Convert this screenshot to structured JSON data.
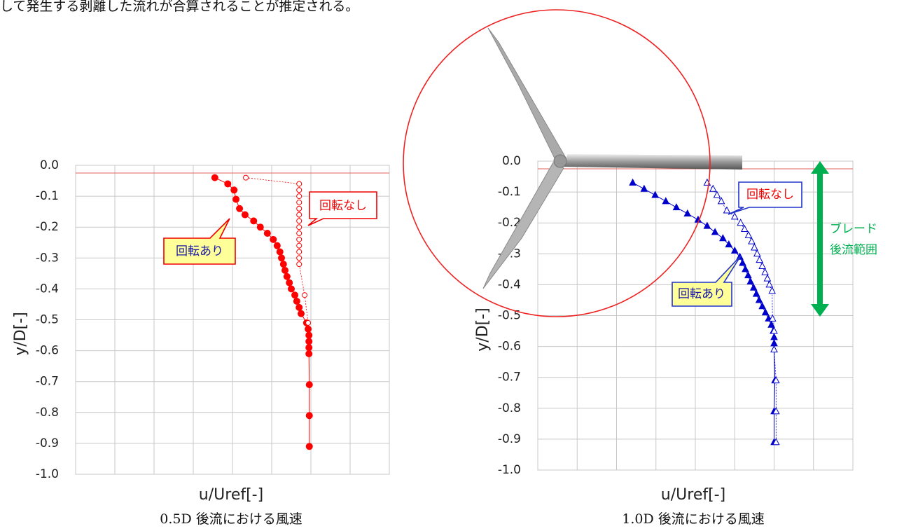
{
  "text": "して発生する剥離した流れが合算されることが推定される。",
  "chart_data": [
    {
      "type": "line",
      "caption": "0.5D 後流における風速",
      "x_label": "u/Uref[-]",
      "y_label": "y/D[-]",
      "xlim": [
        0,
        8
      ],
      "xticks": [
        0,
        1,
        2,
        3,
        4,
        5,
        6,
        7,
        8
      ],
      "ylim": [
        -1,
        0
      ],
      "yticks": [
        {
          "value": 0,
          "label": "0.0"
        },
        -0.1,
        -0.2,
        -0.3,
        -0.4,
        -0.5,
        -0.6,
        -0.7,
        -0.8,
        -0.9,
        {
          "value": -1,
          "label": "-1.0"
        }
      ],
      "grid": true,
      "hline": -0.025,
      "hline_color": "#e06060",
      "series": [
        {
          "name": "回転あり",
          "color": "#ff0000",
          "marker": "circle",
          "filled": true,
          "x": [
            3.55,
            3.88,
            4.04,
            4.09,
            4.18,
            4.32,
            4.54,
            4.71,
            4.89,
            5.04,
            5.14,
            5.21,
            5.25,
            5.3,
            5.34,
            5.39,
            5.45,
            5.5,
            5.59,
            5.64,
            5.7,
            5.75,
            5.89,
            5.93,
            5.95,
            5.95,
            5.95,
            5.95,
            5.96,
            5.96,
            5.96
          ],
          "values": [
            -0.04,
            -0.06,
            -0.08,
            -0.11,
            -0.14,
            -0.16,
            -0.18,
            -0.2,
            -0.22,
            -0.24,
            -0.26,
            -0.28,
            -0.3,
            -0.32,
            -0.34,
            -0.36,
            -0.38,
            -0.4,
            -0.42,
            -0.44,
            -0.46,
            -0.48,
            -0.51,
            -0.53,
            -0.55,
            -0.57,
            -0.59,
            -0.61,
            -0.71,
            -0.81,
            -0.91
          ]
        },
        {
          "name": "回転なし",
          "color": "#ff0000",
          "marker": "circle",
          "filled": false,
          "x": [
            4.34,
            5.7,
            5.7,
            5.7,
            5.7,
            5.7,
            5.7,
            5.7,
            5.7,
            5.7,
            5.7,
            5.7,
            5.7,
            5.7,
            5.7,
            5.84,
            5.93
          ],
          "values": [
            -0.04,
            -0.06,
            -0.08,
            -0.1,
            -0.12,
            -0.14,
            -0.16,
            -0.18,
            -0.2,
            -0.22,
            -0.24,
            -0.26,
            -0.28,
            -0.3,
            -0.32,
            -0.42,
            -0.51
          ]
        }
      ]
    },
    {
      "type": "line",
      "caption": "1.0D 後流における風速",
      "x_label": "u/Uref[-]",
      "y_label": "y/D[-]",
      "xlim": [
        0,
        8
      ],
      "xticks": [
        0,
        1,
        2,
        3,
        4,
        5,
        6,
        7,
        8
      ],
      "ylim": [
        -1,
        0
      ],
      "yticks": [
        {
          "value": 0,
          "label": "0.0"
        },
        -0.1,
        -0.2,
        -0.3,
        -0.4,
        -0.5,
        -0.6,
        -0.7,
        -0.8,
        -0.9,
        {
          "value": -1,
          "label": "-1.0"
        }
      ],
      "grid": true,
      "hline": -0.025,
      "hline_color": "#e06060",
      "annotation": [
        "ブレード",
        "後流範囲"
      ],
      "annotation_color": "#00b050",
      "series": [
        {
          "name": "回転あり",
          "color": "#0000cc",
          "marker": "triangle",
          "filled": true,
          "x": [
            2.41,
            2.7,
            2.98,
            3.25,
            3.52,
            3.8,
            4.07,
            4.3,
            4.5,
            4.7,
            4.85,
            5.0,
            5.13,
            5.2,
            5.27,
            5.34,
            5.4,
            5.48,
            5.55,
            5.62,
            5.7,
            5.78,
            5.86,
            5.93,
            5.98,
            6.0,
            6.0,
            6.0,
            6.02,
            6.0,
            6.0
          ],
          "values": [
            -0.07,
            -0.09,
            -0.11,
            -0.13,
            -0.15,
            -0.17,
            -0.19,
            -0.21,
            -0.23,
            -0.25,
            -0.27,
            -0.29,
            -0.31,
            -0.33,
            -0.35,
            -0.37,
            -0.39,
            -0.41,
            -0.43,
            -0.45,
            -0.47,
            -0.49,
            -0.51,
            -0.53,
            -0.55,
            -0.57,
            -0.59,
            -0.61,
            -0.71,
            -0.81,
            -0.91
          ]
        },
        {
          "name": "回転なし",
          "color": "#0000cc",
          "marker": "triangle",
          "filled": false,
          "x": [
            4.3,
            4.45,
            4.55,
            4.66,
            4.8,
            5.0,
            5.15,
            5.25,
            5.35,
            5.43,
            5.5,
            5.57,
            5.63,
            5.7,
            5.77,
            5.83,
            5.88,
            5.95,
            5.96,
            6.0,
            6.0,
            6.05,
            6.05,
            6.05
          ],
          "values": [
            -0.07,
            -0.09,
            -0.11,
            -0.13,
            -0.16,
            -0.18,
            -0.2,
            -0.22,
            -0.24,
            -0.26,
            -0.28,
            -0.3,
            -0.32,
            -0.34,
            -0.36,
            -0.38,
            -0.4,
            -0.42,
            -0.51,
            -0.55,
            -0.61,
            -0.71,
            -0.81,
            -0.91
          ]
        }
      ]
    }
  ]
}
